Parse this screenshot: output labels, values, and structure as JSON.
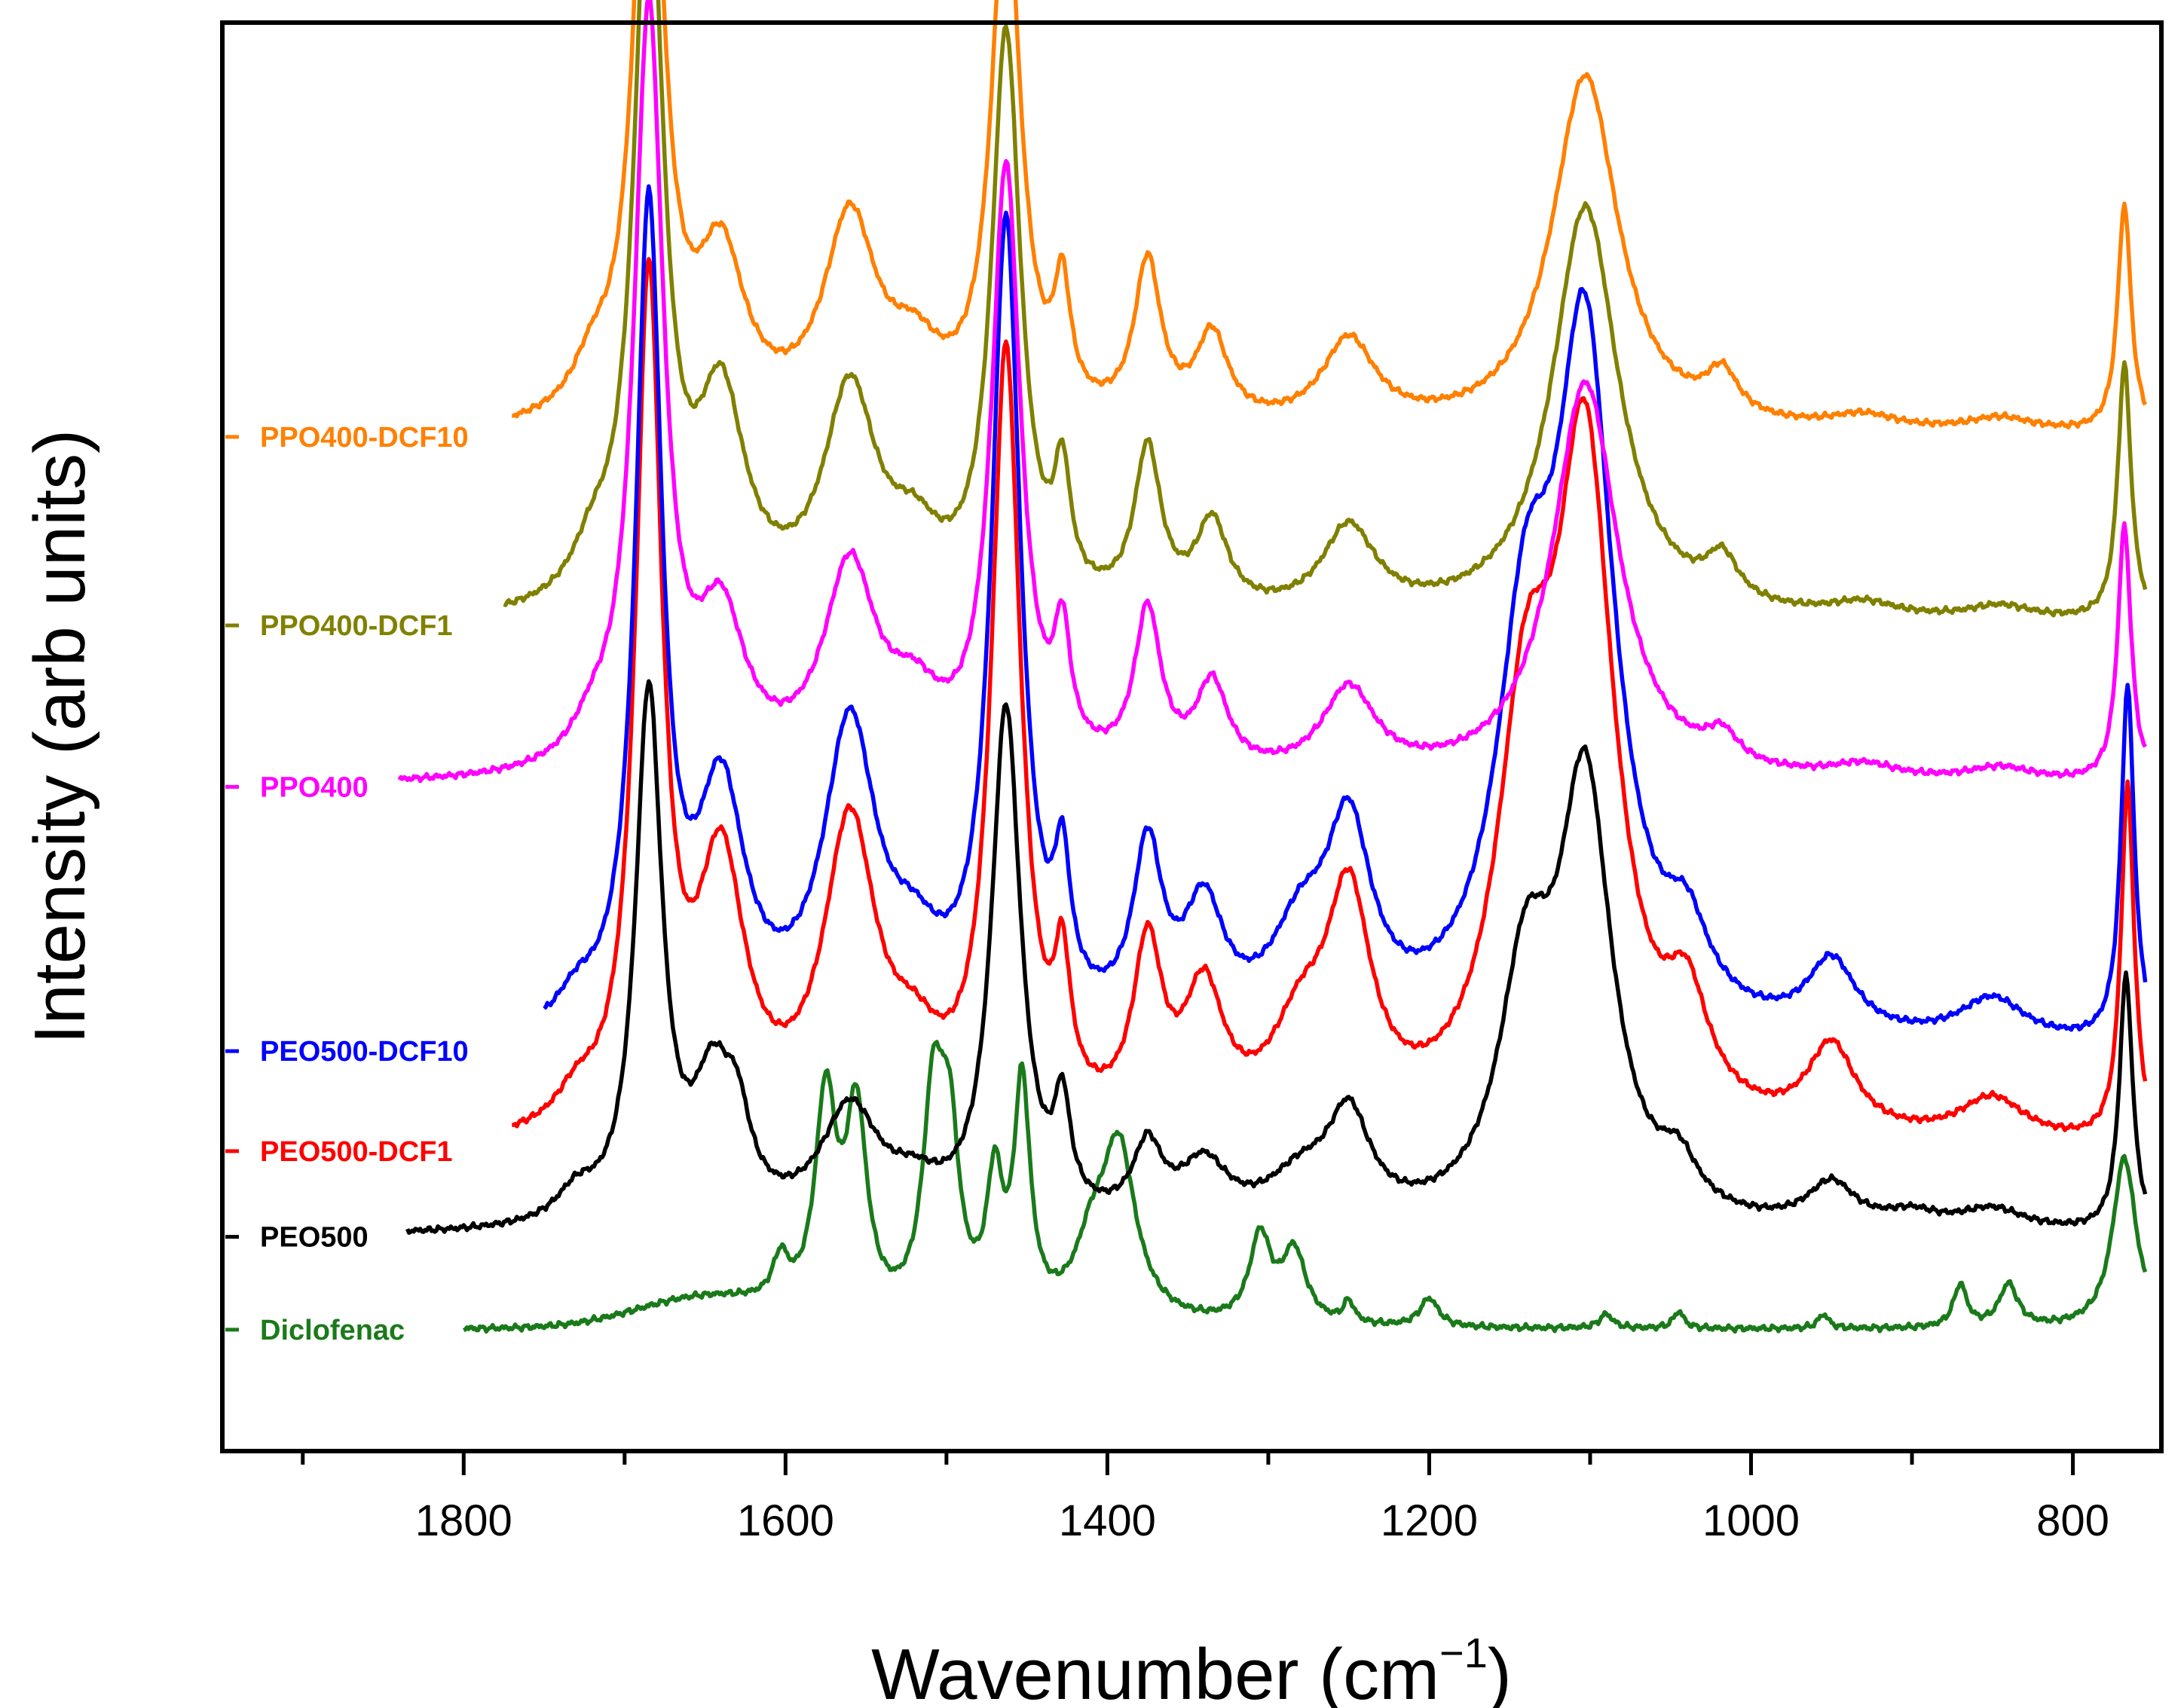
{
  "chart_data": {
    "type": "line",
    "title": "",
    "xlabel": "Wavenumber (cm",
    "xlabel_sup": "−1",
    "xlabel_close": ")",
    "ylabel": "Intensity (arb units)",
    "xlim": [
      1950,
      745
    ],
    "ylim": [
      0,
      1
    ],
    "x_ticks": [
      1800,
      1600,
      1400,
      1200,
      1000,
      800
    ],
    "x_minor_ticks": [
      1900,
      1700,
      1500,
      1300,
      1100,
      900
    ],
    "y_ticks_shown": false,
    "grid": false,
    "legend_placement": "inline-left",
    "series": [
      {
        "name": "Diclofenac",
        "color": "#1a7a1a",
        "start": 1800,
        "baseline": 0.085,
        "peaks": [
          [
            1603,
            0.03,
            6
          ],
          [
            1575,
            0.15,
            8
          ],
          [
            1556,
            0.14,
            8
          ],
          [
            1508,
            0.15,
            8
          ],
          [
            1498,
            0.11,
            7
          ],
          [
            1470,
            0.09,
            6
          ],
          [
            1453,
            0.16,
            6
          ],
          [
            1410,
            0.04,
            12
          ],
          [
            1393,
            0.12,
            13
          ],
          [
            1305,
            0.06,
            8
          ],
          [
            1284,
            0.05,
            9
          ],
          [
            1250,
            0.015,
            4
          ],
          [
            1200,
            0.02,
            7
          ],
          [
            1090,
            0.01,
            5
          ],
          [
            1045,
            0.012,
            4
          ],
          [
            955,
            0.01,
            4
          ],
          [
            870,
            0.03,
            5
          ],
          [
            840,
            0.03,
            7
          ],
          [
            768,
            0.12,
            9
          ]
        ],
        "bumps": [
          [
            1650,
            0.02,
            60
          ]
        ]
      },
      {
        "name": "PEO500",
        "color": "#000000",
        "start": 1835,
        "baseline": 0.15,
        "peaks": [
          [
            1730,
            0.02,
            15
          ],
          [
            1685,
            0.37,
            10
          ],
          [
            1645,
            0.09,
            15
          ],
          [
            1630,
            0.05,
            10
          ],
          [
            1560,
            0.08,
            22
          ],
          [
            1520,
            0.02,
            20
          ],
          [
            1463,
            0.36,
            11
          ],
          [
            1428,
            0.07,
            6
          ],
          [
            1375,
            0.05,
            11
          ],
          [
            1340,
            0.04,
            18
          ],
          [
            1280,
            0.03,
            25
          ],
          [
            1250,
            0.07,
            16
          ],
          [
            1140,
            0.16,
            20
          ],
          [
            1103,
            0.3,
            20
          ],
          [
            1045,
            0.03,
            14
          ],
          [
            950,
            0.03,
            18
          ],
          [
            900,
            0.01,
            20
          ],
          [
            850,
            0.015,
            25
          ],
          [
            767,
            0.18,
            5
          ]
        ],
        "bumps": []
      },
      {
        "name": "PEO500-DCF1",
        "color": "#ff0000",
        "start": 1770,
        "baseline": 0.21,
        "peaks": [
          [
            1730,
            0.02,
            15
          ],
          [
            1685,
            0.59,
            10
          ],
          [
            1640,
            0.18,
            18
          ],
          [
            1560,
            0.21,
            20
          ],
          [
            1520,
            0.04,
            20
          ],
          [
            1463,
            0.54,
            11
          ],
          [
            1428,
            0.09,
            6
          ],
          [
            1375,
            0.12,
            11
          ],
          [
            1340,
            0.09,
            15
          ],
          [
            1280,
            0.06,
            22
          ],
          [
            1250,
            0.15,
            17
          ],
          [
            1140,
            0.25,
            22
          ],
          [
            1103,
            0.45,
            22
          ],
          [
            1040,
            0.07,
            16
          ],
          [
            950,
            0.06,
            18
          ],
          [
            850,
            0.03,
            25
          ],
          [
            766,
            0.25,
            5
          ]
        ],
        "bumps": []
      },
      {
        "name": "PEO500-DCF10",
        "color": "#0000ff",
        "start": 1750,
        "baseline": 0.28,
        "peaks": [
          [
            1730,
            0.02,
            15
          ],
          [
            1685,
            0.57,
            10
          ],
          [
            1640,
            0.16,
            18
          ],
          [
            1560,
            0.21,
            20
          ],
          [
            1520,
            0.04,
            20
          ],
          [
            1463,
            0.56,
            11
          ],
          [
            1428,
            0.09,
            6
          ],
          [
            1375,
            0.12,
            11
          ],
          [
            1340,
            0.08,
            15
          ],
          [
            1280,
            0.06,
            22
          ],
          [
            1250,
            0.13,
            17
          ],
          [
            1140,
            0.24,
            22
          ],
          [
            1103,
            0.46,
            22
          ],
          [
            1040,
            0.05,
            16
          ],
          [
            950,
            0.05,
            18
          ],
          [
            850,
            0.03,
            25
          ],
          [
            766,
            0.25,
            5
          ]
        ],
        "bumps": []
      },
      {
        "name": "PPO400",
        "color": "#ff00ff",
        "start": 1840,
        "baseline": 0.465,
        "peaks": [
          [
            1720,
            0.02,
            15
          ],
          [
            1685,
            0.53,
            11
          ],
          [
            1640,
            0.1,
            18
          ],
          [
            1560,
            0.14,
            20
          ],
          [
            1520,
            0.04,
            20
          ],
          [
            1463,
            0.42,
            11
          ],
          [
            1428,
            0.08,
            6
          ],
          [
            1375,
            0.11,
            10
          ],
          [
            1335,
            0.06,
            12
          ],
          [
            1250,
            0.06,
            20
          ],
          [
            1103,
            0.28,
            25
          ],
          [
            1018,
            0.02,
            12
          ],
          [
            930,
            0.01,
            25
          ],
          [
            845,
            0.01,
            25
          ],
          [
            768,
            0.18,
            5
          ]
        ],
        "bumps": []
      },
      {
        "name": "PPO400-DCF1",
        "color": "#808000",
        "start": 1775,
        "baseline": 0.578,
        "peaks": [
          [
            1720,
            0.03,
            15
          ],
          [
            1685,
            0.52,
            11
          ],
          [
            1640,
            0.14,
            18
          ],
          [
            1560,
            0.15,
            20
          ],
          [
            1520,
            0.04,
            20
          ],
          [
            1463,
            0.4,
            11
          ],
          [
            1428,
            0.08,
            6
          ],
          [
            1375,
            0.11,
            10
          ],
          [
            1335,
            0.06,
            12
          ],
          [
            1250,
            0.06,
            20
          ],
          [
            1103,
            0.29,
            25
          ],
          [
            1018,
            0.03,
            12
          ],
          [
            930,
            0.01,
            25
          ],
          [
            845,
            0.01,
            25
          ],
          [
            768,
            0.18,
            5
          ]
        ],
        "bumps": []
      },
      {
        "name": "PPO400-DCF10",
        "color": "#ff8000",
        "start": 1770,
        "baseline": 0.71,
        "peaks": [
          [
            1720,
            0.03,
            15
          ],
          [
            1685,
            0.47,
            11
          ],
          [
            1640,
            0.11,
            18
          ],
          [
            1560,
            0.14,
            20
          ],
          [
            1520,
            0.04,
            20
          ],
          [
            1463,
            0.37,
            11
          ],
          [
            1428,
            0.08,
            6
          ],
          [
            1375,
            0.11,
            10
          ],
          [
            1335,
            0.06,
            12
          ],
          [
            1250,
            0.06,
            20
          ],
          [
            1103,
            0.25,
            25
          ],
          [
            1018,
            0.03,
            12
          ],
          [
            930,
            0.01,
            25
          ],
          [
            845,
            0.01,
            25
          ],
          [
            768,
            0.16,
            5
          ]
        ],
        "bumps": []
      }
    ]
  }
}
